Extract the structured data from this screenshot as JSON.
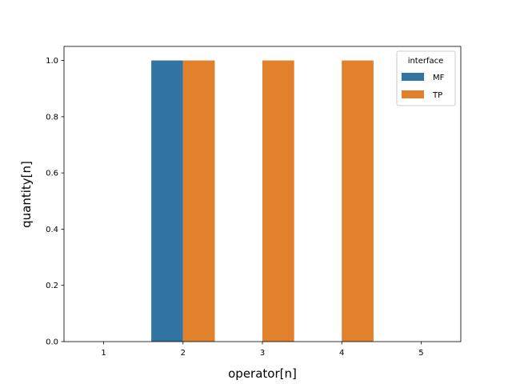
{
  "chart_data": {
    "type": "bar",
    "title": "",
    "xlabel": "operator[n]",
    "ylabel": "quantity[n]",
    "categories": [
      "1",
      "2",
      "3",
      "4",
      "5"
    ],
    "series": [
      {
        "name": "MF",
        "color": "#3274a1",
        "values": [
          0,
          1,
          0,
          0,
          0
        ]
      },
      {
        "name": "TP",
        "color": "#e1812c",
        "values": [
          0,
          1,
          1,
          1,
          0
        ]
      }
    ],
    "ylim": [
      0,
      1.05
    ],
    "yticks": [
      "0.0",
      "0.2",
      "0.4",
      "0.6",
      "0.8",
      "1.0"
    ],
    "grid": false,
    "legend": {
      "title": "interface",
      "placement": "top-right"
    }
  }
}
